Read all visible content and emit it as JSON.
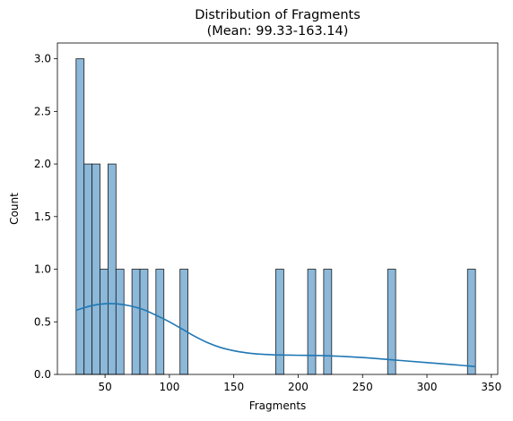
{
  "chart_data": {
    "type": "bar",
    "title": "Distribution of Fragments",
    "subtitle": "(Mean: 99.33-163.14)",
    "xlabel": "Fragments",
    "ylabel": "Count",
    "xlim": [
      13,
      355
    ],
    "ylim": [
      0,
      3.15
    ],
    "x_ticks": [
      50,
      100,
      150,
      200,
      250,
      300,
      350
    ],
    "x_tick_labels": [
      "50",
      "100",
      "150",
      "200",
      "250",
      "300",
      "350"
    ],
    "y_ticks": [
      0,
      0.5,
      1,
      1.5,
      2,
      2.5,
      3
    ],
    "y_tick_labels": [
      "0.0",
      "0.5",
      "1.0",
      "1.5",
      "2.0",
      "2.5",
      "3.0"
    ],
    "grid": false,
    "legend": "none",
    "colors": {
      "bar_fill": "#8cb8d9",
      "bar_edge": "#1b1b1b",
      "kde_line": "#1f77b4",
      "axis": "#000000"
    },
    "bars": [
      {
        "x0": 27.5,
        "x1": 33.7,
        "count": 3
      },
      {
        "x0": 33.7,
        "x1": 39.9,
        "count": 2
      },
      {
        "x0": 39.9,
        "x1": 46.1,
        "count": 2
      },
      {
        "x0": 46.1,
        "x1": 52.3,
        "count": 1
      },
      {
        "x0": 52.3,
        "x1": 58.5,
        "count": 2
      },
      {
        "x0": 58.5,
        "x1": 64.7,
        "count": 1
      },
      {
        "x0": 70.9,
        "x1": 77.1,
        "count": 1
      },
      {
        "x0": 77.1,
        "x1": 83.3,
        "count": 1
      },
      {
        "x0": 89.5,
        "x1": 95.7,
        "count": 1
      },
      {
        "x0": 108.2,
        "x1": 114.4,
        "count": 1
      },
      {
        "x0": 182.6,
        "x1": 188.8,
        "count": 1
      },
      {
        "x0": 207.4,
        "x1": 213.6,
        "count": 1
      },
      {
        "x0": 219.8,
        "x1": 226.0,
        "count": 1
      },
      {
        "x0": 269.5,
        "x1": 275.7,
        "count": 1
      },
      {
        "x0": 331.5,
        "x1": 337.7,
        "count": 1
      }
    ],
    "kde": {
      "x": [
        27.5,
        40,
        50,
        60,
        70,
        80,
        90,
        100,
        110,
        120,
        130,
        140,
        150,
        160,
        170,
        180,
        190,
        200,
        220,
        240,
        260,
        280,
        300,
        320,
        337.7
      ],
      "y": [
        0.61,
        0.655,
        0.672,
        0.67,
        0.65,
        0.615,
        0.56,
        0.5,
        0.43,
        0.36,
        0.3,
        0.255,
        0.225,
        0.205,
        0.193,
        0.187,
        0.184,
        0.182,
        0.178,
        0.168,
        0.152,
        0.132,
        0.112,
        0.093,
        0.075
      ]
    }
  }
}
